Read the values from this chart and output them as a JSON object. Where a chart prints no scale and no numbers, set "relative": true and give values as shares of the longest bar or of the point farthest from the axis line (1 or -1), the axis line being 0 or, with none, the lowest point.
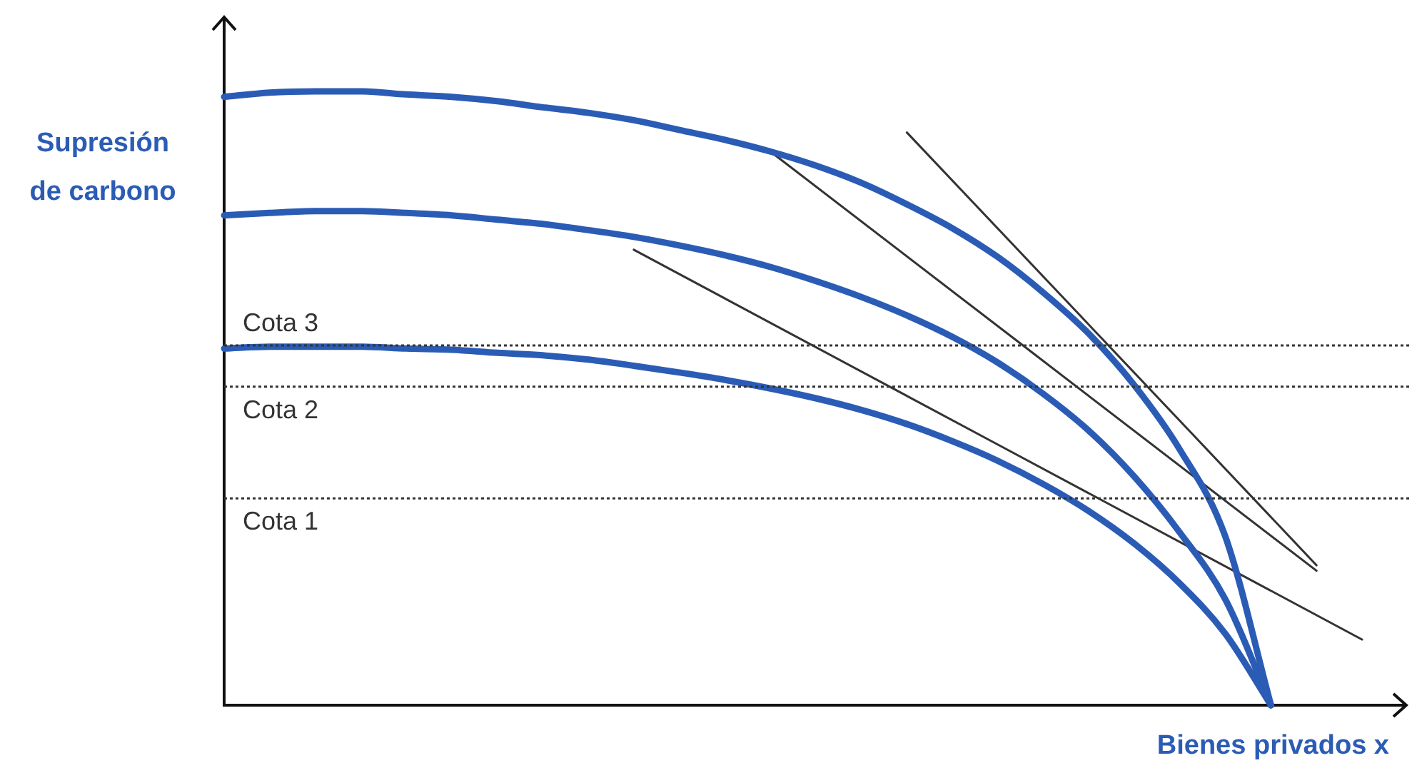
{
  "chart_data": {
    "type": "line",
    "relative": true,
    "xlabel": "Bienes privados x",
    "ylabel": "Supresión de carbono",
    "categories": [
      null,
      null,
      null,
      null,
      null,
      null,
      null,
      null,
      null,
      null,
      null,
      null,
      null,
      null,
      null,
      null,
      null,
      null,
      null,
      null,
      null,
      null,
      null,
      null,
      null,
      null
    ],
    "series": [
      {
        "color": "#2b5cb5",
        "values": [
          0.991,
          0.998,
          1.0,
          1.0,
          0.995,
          0.991,
          0.984,
          0.974,
          0.965,
          0.953,
          0.937,
          0.921,
          0.902,
          0.879,
          0.851,
          0.816,
          0.777,
          0.73,
          0.672,
          0.605,
          0.521,
          0.416,
          0.274,
          0,
          null,
          null
        ]
      },
      {
        "color": "#2b5cb5",
        "values": [
          0.798,
          0.802,
          0.805,
          0.805,
          0.802,
          0.798,
          0.791,
          0.784,
          0.774,
          0.763,
          0.749,
          0.733,
          0.714,
          0.691,
          0.665,
          0.635,
          0.6,
          0.558,
          0.507,
          0.447,
          0.372,
          0.281,
          0.172,
          0,
          null,
          null
        ]
      },
      {
        "color": "#2b5cb5",
        "values": [
          0.581,
          0.584,
          0.584,
          0.584,
          0.581,
          0.579,
          0.574,
          0.57,
          0.563,
          0.553,
          0.542,
          0.53,
          0.516,
          0.5,
          0.481,
          0.458,
          0.43,
          0.398,
          0.36,
          0.316,
          0.263,
          0.198,
          0.116,
          0,
          null,
          null
        ]
      },
      {
        "color": "#333333",
        "values": [
          null,
          null,
          null,
          null,
          null,
          null,
          null,
          null,
          null,
          null,
          null,
          null,
          null,
          null,
          null,
          0.933,
          null,
          null,
          null,
          null,
          null,
          null,
          null,
          null,
          0.228,
          null
        ]
      },
      {
        "color": "#333333",
        "values": [
          null,
          null,
          null,
          null,
          null,
          null,
          null,
          null,
          null,
          null,
          null,
          null,
          0.902,
          null,
          null,
          null,
          null,
          null,
          null,
          null,
          null,
          null,
          null,
          null,
          0.219,
          null
        ]
      },
      {
        "color": "#333333",
        "values": [
          null,
          null,
          null,
          null,
          null,
          null,
          null,
          null,
          null,
          0.742,
          null,
          null,
          null,
          null,
          null,
          null,
          null,
          null,
          null,
          null,
          null,
          null,
          null,
          null,
          null,
          0.107
        ]
      }
    ],
    "ref_lines": [
      {
        "axis": "y",
        "value": 0.586,
        "label": "Cota 3",
        "color": "#333333",
        "line_style": "dotted"
      },
      {
        "axis": "y",
        "value": 0.519,
        "label": "Cota 2",
        "color": "#333333",
        "line_style": "dotted"
      },
      {
        "axis": "y",
        "value": 0.337,
        "label": "Cota 1",
        "color": "#333333",
        "line_style": "dotted"
      }
    ],
    "marker": "none"
  }
}
